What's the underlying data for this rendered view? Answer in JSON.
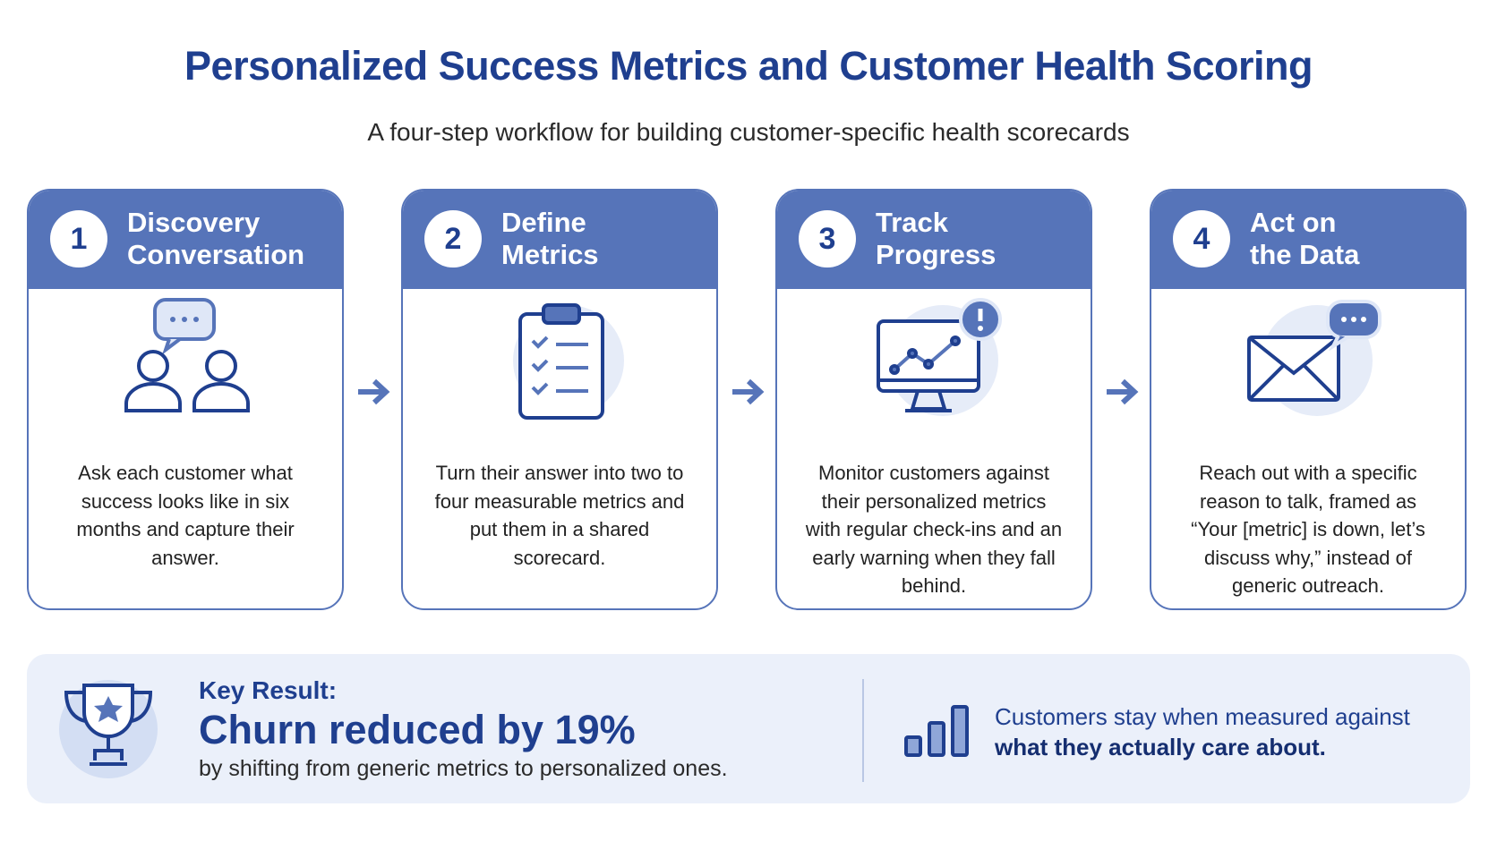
{
  "header": {
    "title": "Personalized Success Metrics and Customer Health Scoring",
    "subtitle": "A four-step workflow for building customer-specific health scorecards"
  },
  "steps": [
    {
      "number": "1",
      "title": [
        "Discovery",
        "Conversation"
      ],
      "description": "Ask each customer what success looks like in six months and capture their answer."
    },
    {
      "number": "2",
      "title": [
        "Define",
        "Metrics"
      ],
      "description": "Turn their answer into two to four measurable metrics and put them in a shared scorecard."
    },
    {
      "number": "3",
      "title": [
        "Track",
        "Progress"
      ],
      "description": "Monitor customers against their personalized metrics with regular check-ins and an early warning when they fall behind."
    },
    {
      "number": "4",
      "title": [
        "Act on",
        "the Data"
      ],
      "description": "Reach out with a specific reason to talk, framed as “Your [metric] is down, let’s discuss why,” instead of generic outreach."
    }
  ],
  "key_result": {
    "label": "Key Result:",
    "headline": "Churn reduced by 19%",
    "text": "by shifting from generic metrics to personalized ones."
  },
  "note": {
    "text": "Customers stay when measured against ",
    "emphasis": "what they actually care about."
  }
}
